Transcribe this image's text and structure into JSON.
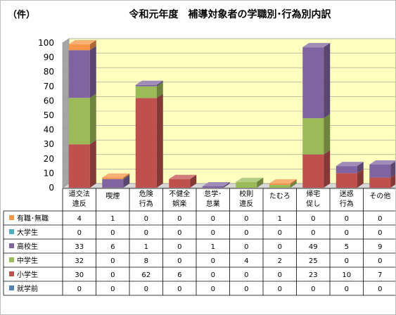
{
  "chart_data": {
    "type": "bar",
    "stacked": true,
    "style": "3d",
    "title": "令和元年度　補導対象者の学職別･行為別内訳",
    "unit_label": "（件）",
    "ylim": [
      0,
      100
    ],
    "yticks": [
      0,
      10,
      20,
      30,
      40,
      50,
      60,
      70,
      80,
      90,
      100
    ],
    "categories": [
      [
        "道交法",
        "違反"
      ],
      [
        "喫煙"
      ],
      [
        "危険",
        "行為"
      ],
      [
        "不健全",
        "娯楽"
      ],
      [
        "怠学･",
        "怠業"
      ],
      [
        "校則",
        "違反"
      ],
      [
        "たむろ"
      ],
      [
        "帰宅",
        "促し"
      ],
      [
        "迷惑",
        "行為"
      ],
      [
        "その他"
      ]
    ],
    "series": [
      {
        "name": "就学前",
        "color": "#4f81bd",
        "values": [
          0,
          0,
          0,
          0,
          0,
          0,
          0,
          0,
          0,
          0
        ]
      },
      {
        "name": "小学生",
        "color": "#c0504d",
        "values": [
          30,
          0,
          62,
          6,
          0,
          0,
          0,
          23,
          10,
          7
        ]
      },
      {
        "name": "中学生",
        "color": "#9bbb59",
        "values": [
          32,
          0,
          8,
          0,
          0,
          4,
          2,
          25,
          0,
          0
        ]
      },
      {
        "name": "高校生",
        "color": "#8064a2",
        "values": [
          33,
          6,
          1,
          0,
          1,
          0,
          0,
          49,
          5,
          9
        ]
      },
      {
        "name": "大学生",
        "color": "#4bacc6",
        "values": [
          0,
          0,
          0,
          0,
          0,
          0,
          0,
          0,
          0,
          0
        ]
      },
      {
        "name": "有職･無職",
        "color": "#f79646",
        "values": [
          4,
          1,
          0,
          0,
          0,
          0,
          1,
          0,
          0,
          0
        ]
      }
    ],
    "table_row_order": [
      "有職･無職",
      "大学生",
      "高校生",
      "中学生",
      "小学生",
      "就学前"
    ],
    "colors": {
      "plot_back": "#ffffc0",
      "wall_side": "#a5a5a5",
      "floor": "#d8d8d8"
    }
  }
}
